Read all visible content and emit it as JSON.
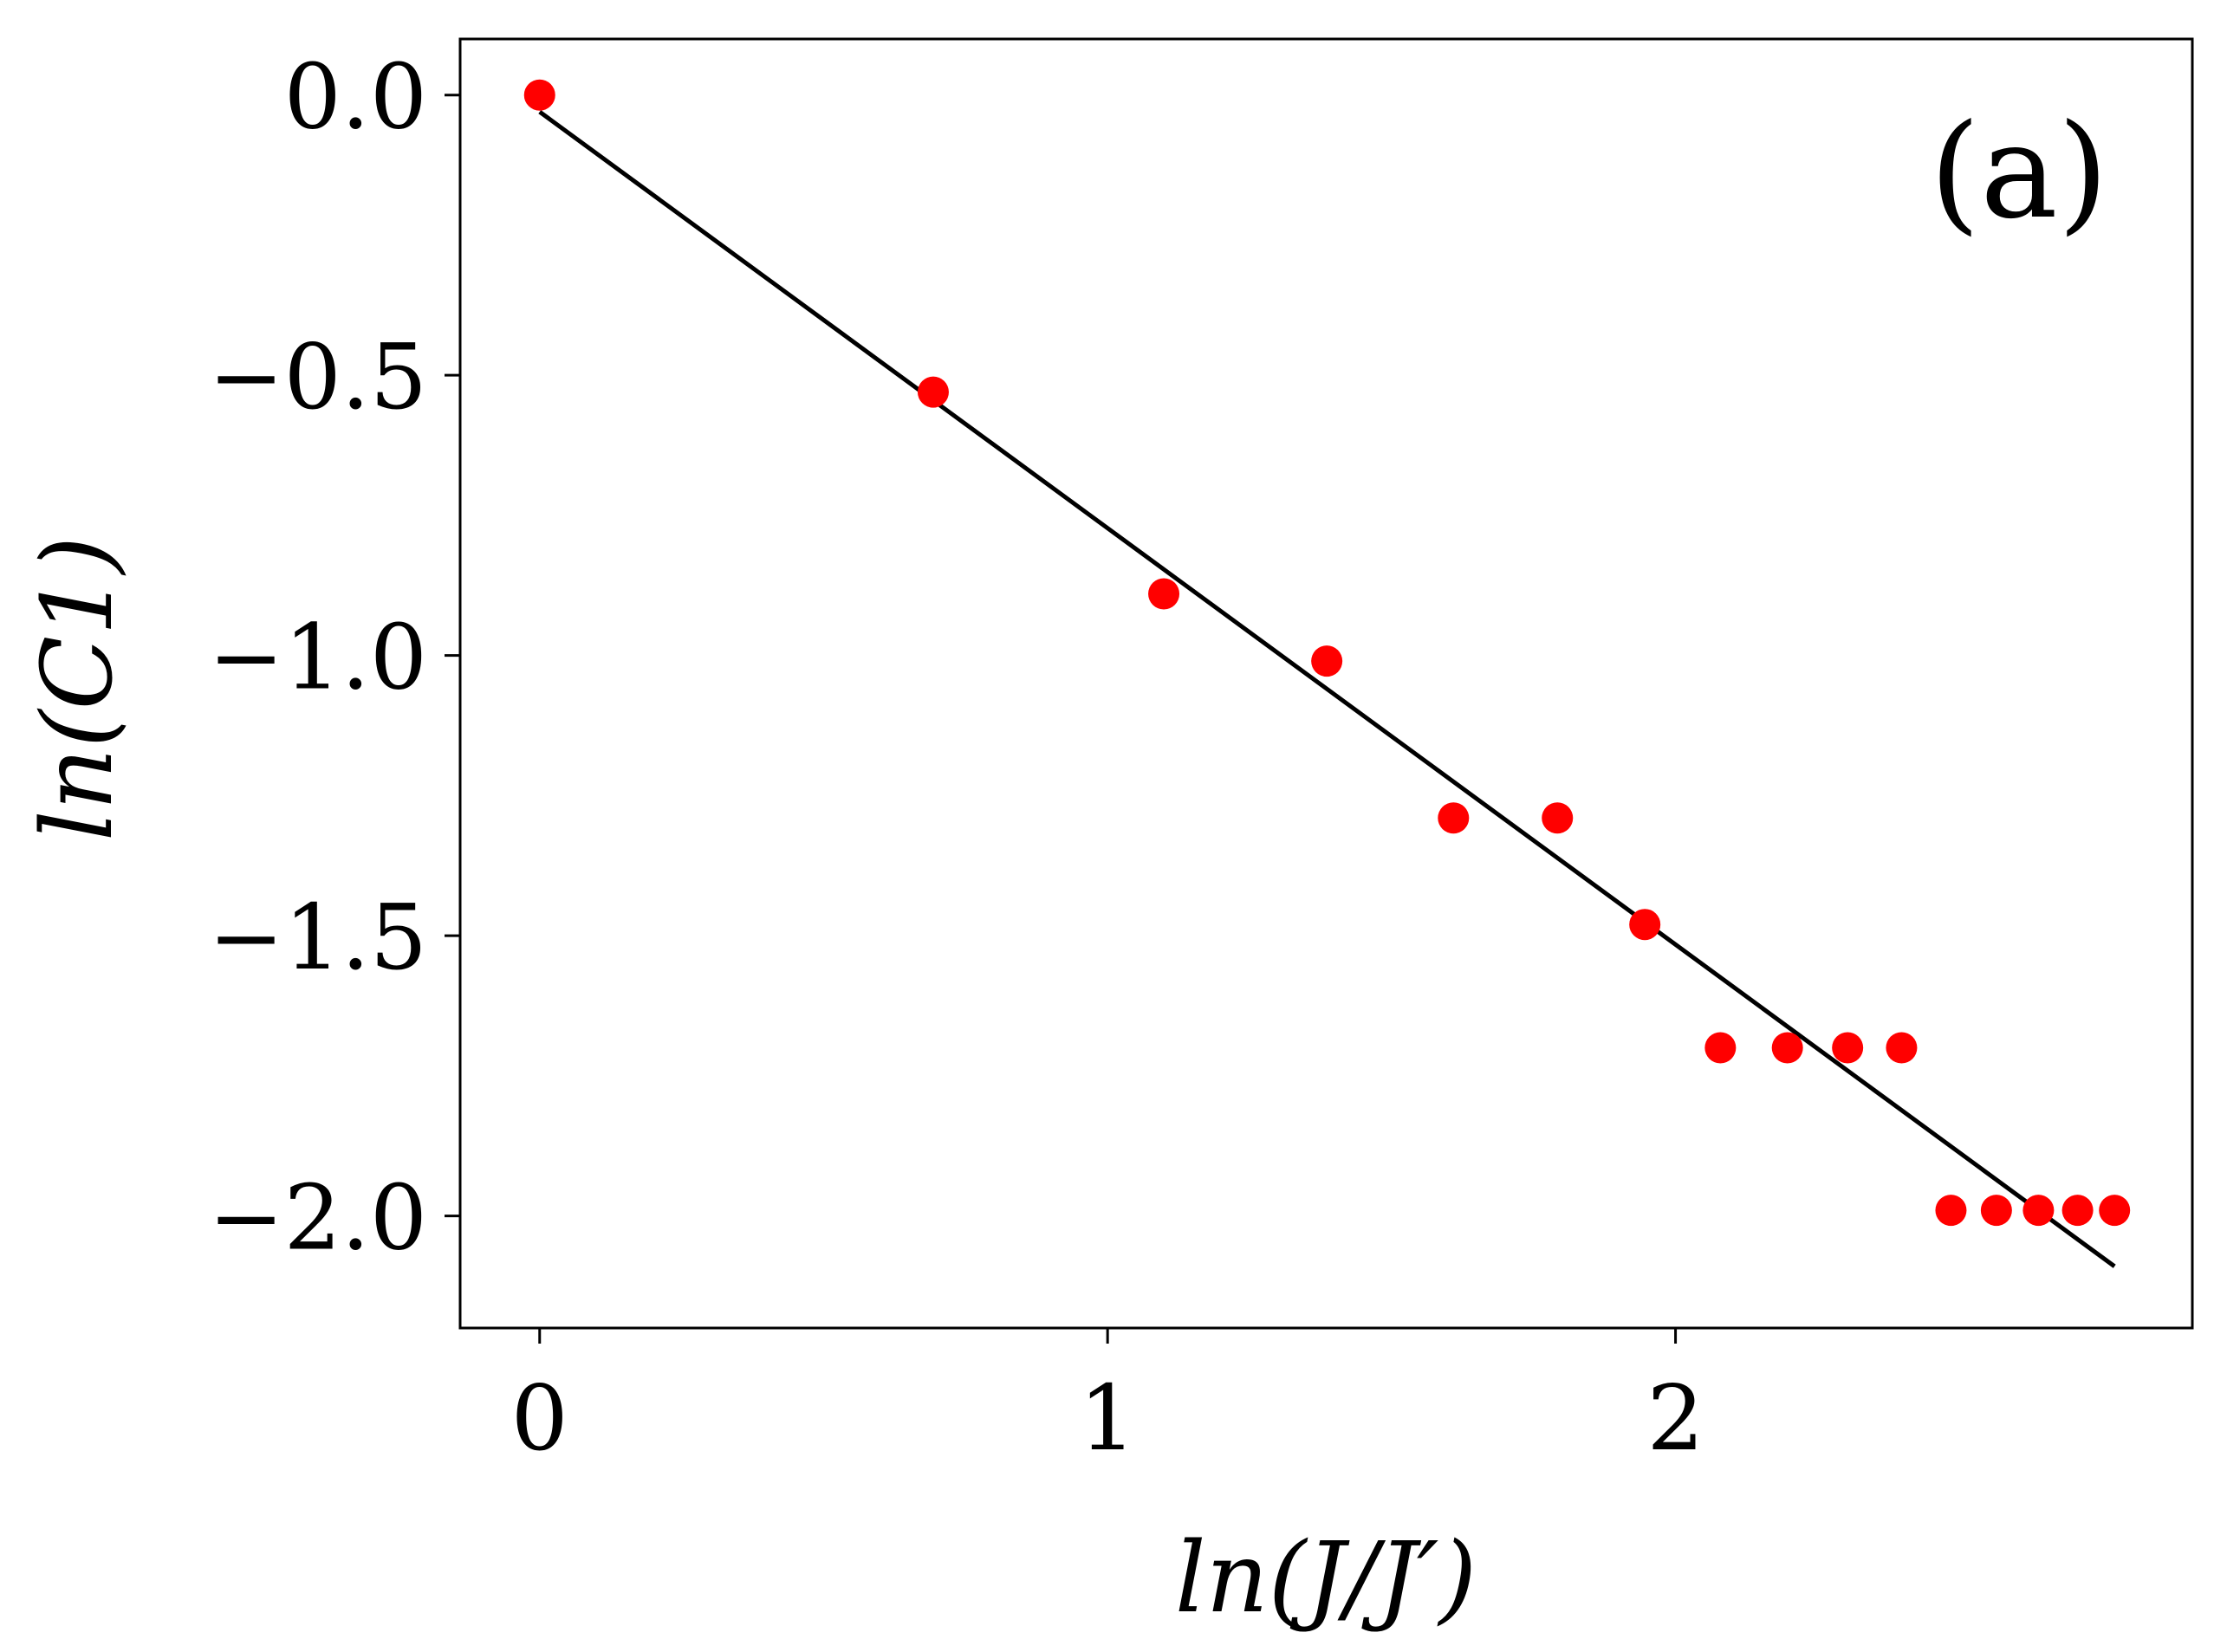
{
  "chart_data": {
    "type": "scatter",
    "panel_label": "(a)",
    "xlabel": "ln(J/J′)",
    "ylabel": "ln(C1)",
    "xlim": [
      -0.14,
      2.91
    ],
    "ylim": [
      -2.2,
      0.1
    ],
    "xticks": [
      0,
      1,
      2
    ],
    "xtick_labels": [
      "0",
      "1",
      "2"
    ],
    "yticks": [
      0.0,
      -0.5,
      -1.0,
      -1.5,
      -2.0
    ],
    "ytick_labels": [
      "0.0",
      "−0.5",
      "−1.0",
      "−1.5",
      "−2.0"
    ],
    "grid": false,
    "legend": "none",
    "series": [
      {
        "kind": "points",
        "color": "#ff0000",
        "x": [
          0.0,
          0.693,
          1.099,
          1.386,
          1.609,
          1.792,
          1.946,
          2.079,
          2.197,
          2.303,
          2.398,
          2.485,
          2.565,
          2.639,
          2.708,
          2.773
        ],
        "y": [
          0.0,
          -0.53,
          -0.89,
          -1.01,
          -1.29,
          -1.29,
          -1.48,
          -1.7,
          -1.7,
          -1.7,
          -1.7,
          -1.99,
          -1.99,
          -1.99,
          -1.99,
          -1.99
        ]
      },
      {
        "kind": "fit-line",
        "color": "#000000",
        "x": [
          0.0,
          2.773
        ],
        "y": [
          -0.03,
          -2.09
        ]
      }
    ]
  }
}
